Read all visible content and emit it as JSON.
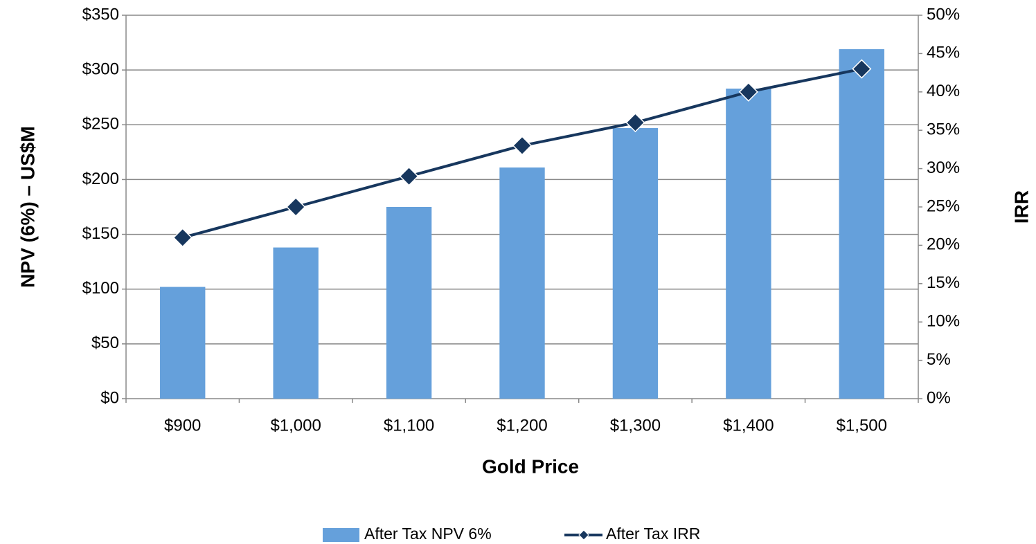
{
  "chart_data": {
    "type": "combo",
    "x_label": "Gold Price",
    "y_label": "NPV (6%) – US$M",
    "y2_label": "IRR",
    "categories": [
      "$900",
      "$1,000",
      "$1,100",
      "$1,200",
      "$1,300",
      "$1,400",
      "$1,500"
    ],
    "series": [
      {
        "name": "After Tax NPV 6%",
        "type": "bar",
        "color": "#65a0db",
        "values": [
          102,
          138,
          175,
          211,
          247,
          283,
          319
        ]
      },
      {
        "name": "After Tax IRR",
        "type": "line",
        "axis": "y2",
        "color": "#17375e",
        "values": [
          21,
          25,
          29,
          33,
          36,
          40,
          43
        ]
      }
    ],
    "ylim": [
      0,
      350
    ],
    "yticks": [
      {
        "value": 0,
        "label": "$0"
      },
      {
        "value": 50,
        "label": "$50"
      },
      {
        "value": 100,
        "label": "$100"
      },
      {
        "value": 150,
        "label": "$150"
      },
      {
        "value": 200,
        "label": "$200"
      },
      {
        "value": 250,
        "label": "$250"
      },
      {
        "value": 300,
        "label": "$300"
      },
      {
        "value": 350,
        "label": "$350"
      }
    ],
    "y2lim": [
      0,
      50
    ],
    "y2ticks": [
      {
        "value": 0,
        "label": "0%"
      },
      {
        "value": 5,
        "label": "5%"
      },
      {
        "value": 10,
        "label": "10%"
      },
      {
        "value": 15,
        "label": "15%"
      },
      {
        "value": 20,
        "label": "20%"
      },
      {
        "value": 25,
        "label": "25%"
      },
      {
        "value": 30,
        "label": "30%"
      },
      {
        "value": 35,
        "label": "35%"
      },
      {
        "value": 40,
        "label": "40%"
      },
      {
        "value": 45,
        "label": "45%"
      },
      {
        "value": 50,
        "label": "50%"
      }
    ],
    "grid": true,
    "legend": "bottom"
  }
}
